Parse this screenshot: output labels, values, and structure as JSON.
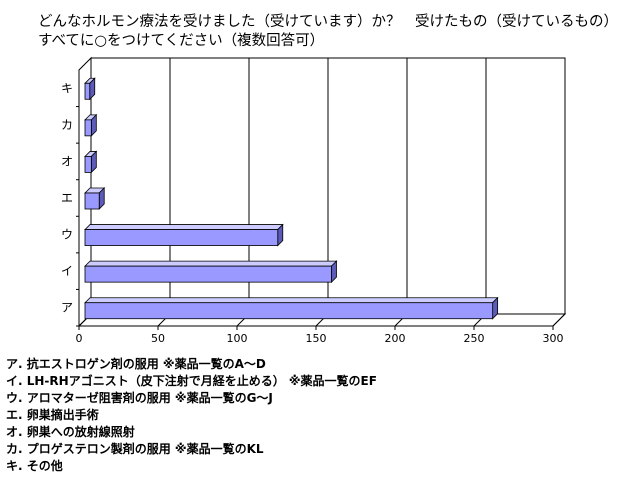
{
  "title": {
    "line1": "どんなホルモン療法を受けました（受けています）か？　受けたもの（受けているもの）",
    "line2": "すべてに○をつけてください（複数回答可）"
  },
  "colors": {
    "bar_front": "#9999ff",
    "bar_top": "#ccccff",
    "bar_side": "#5c5cb8",
    "grid": "#000000"
  },
  "chart_data": {
    "type": "bar",
    "orientation": "horizontal",
    "categories": [
      "ア",
      "イ",
      "ウ",
      "エ",
      "オ",
      "カ",
      "キ"
    ],
    "values": [
      258,
      156,
      122,
      9,
      4,
      4,
      3
    ],
    "xlim": [
      0,
      300
    ],
    "xticks": [
      0,
      50,
      100,
      150,
      200,
      250,
      300
    ],
    "grid": true,
    "legend": "none"
  },
  "legend_items": [
    "ア. 抗エストロゲン剤の服用 ※薬品一覧のA～D",
    "イ. LH-RHアゴニスト（皮下注射で月経を止める） ※薬品一覧のEF",
    "ウ. アロマターゼ阻害剤の服用 ※薬品一覧のG～J",
    "エ. 卵巣摘出手術",
    "オ. 卵巣への放射線照射",
    "カ. プロゲステロン製剤の服用 ※薬品一覧のKL",
    "キ. その他"
  ]
}
